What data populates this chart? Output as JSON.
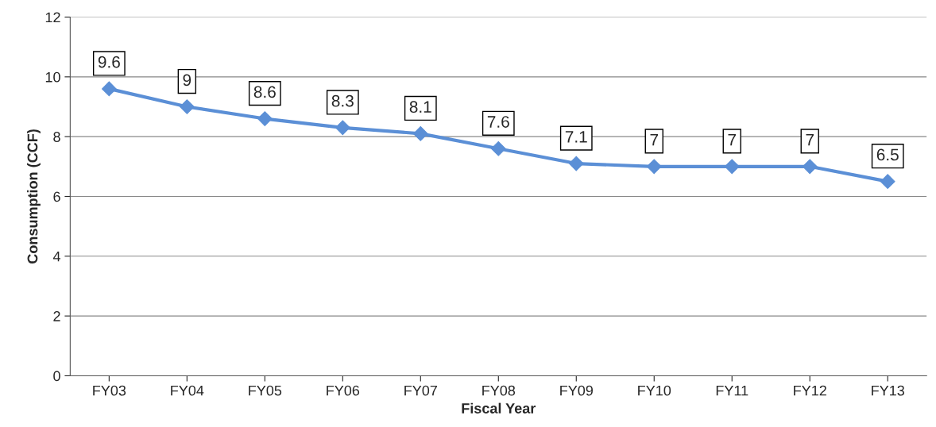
{
  "chart_data": {
    "type": "line",
    "xlabel": "Fiscal Year",
    "ylabel": "Consumption (CCF)",
    "categories": [
      "FY03",
      "FY04",
      "FY05",
      "FY06",
      "FY07",
      "FY08",
      "FY09",
      "FY10",
      "FY11",
      "FY12",
      "FY13"
    ],
    "series": [
      {
        "color": "#5b8fd6",
        "values": [
          9.6,
          9,
          8.6,
          8.3,
          8.1,
          7.6,
          7.1,
          7,
          7,
          7,
          6.5
        ]
      }
    ],
    "ylim": [
      0,
      12
    ],
    "yticks": [
      0,
      2,
      4,
      6,
      8,
      10,
      12
    ],
    "grid": "y",
    "marker": "diamond",
    "line_style": "solid",
    "data_labels": true
  }
}
